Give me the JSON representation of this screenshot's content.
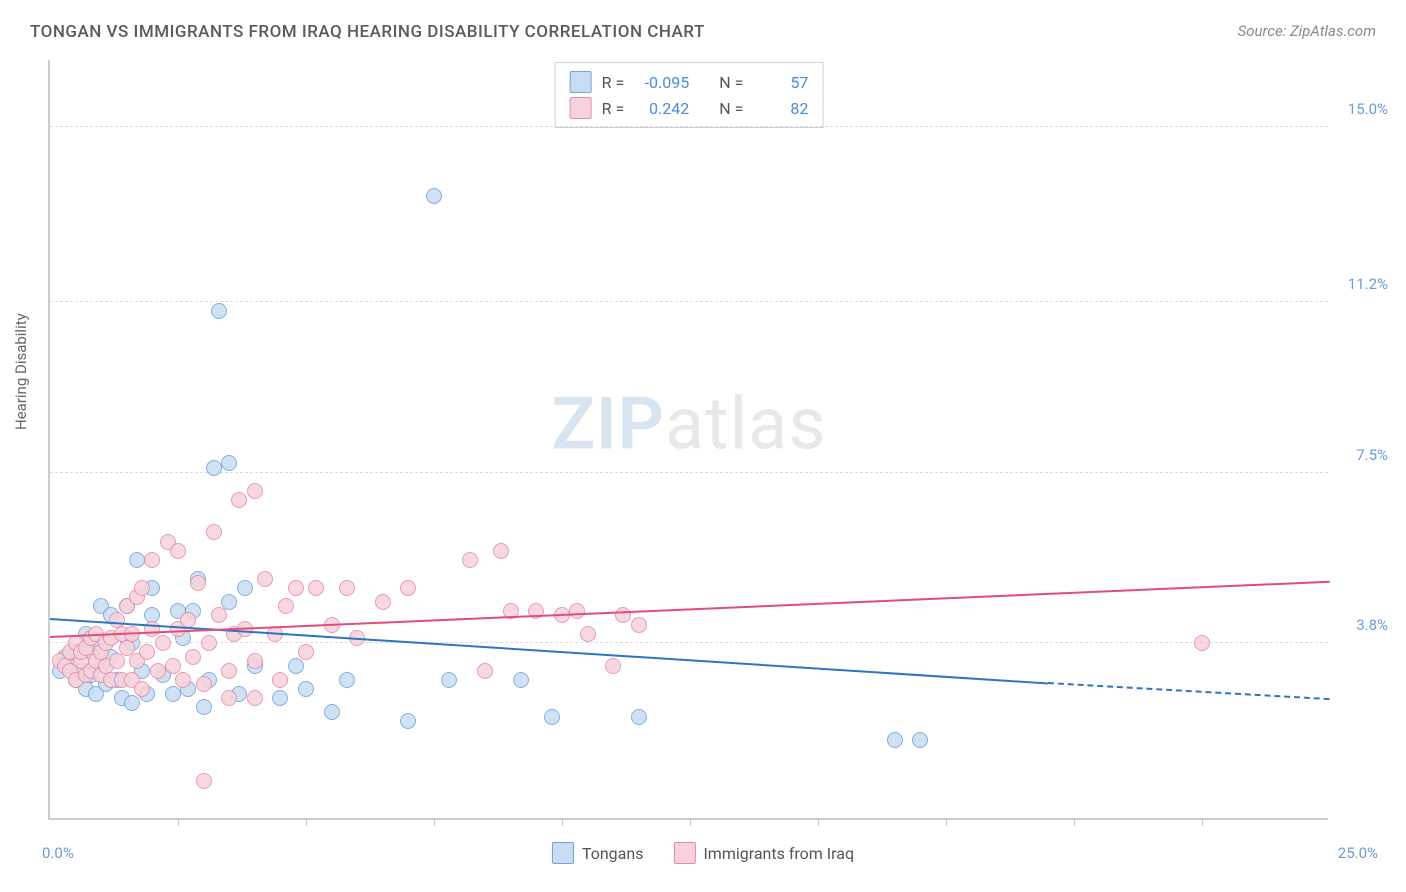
{
  "title": "TONGAN VS IMMIGRANTS FROM IRAQ HEARING DISABILITY CORRELATION CHART",
  "source": "Source: ZipAtlas.com",
  "watermark_a": "ZIP",
  "watermark_b": "atlas",
  "y_axis_title": "Hearing Disability",
  "x_origin": "0.0%",
  "x_max": "25.0%",
  "chart": {
    "type": "scatter-with-trendlines",
    "background_color": "#ffffff",
    "grid_color": "#dddddd",
    "axis_color": "#cccccc",
    "tick_label_color": "#6b9bd1",
    "axis_title_color": "#666666",
    "xlim": [
      0.0,
      25.0
    ],
    "ylim": [
      0.0,
      16.5
    ],
    "y_ticks": [
      3.8,
      7.5,
      11.2,
      15.0
    ],
    "y_tick_labels": [
      "3.8%",
      "7.5%",
      "11.2%",
      "15.0%"
    ],
    "x_tick_positions_pct": [
      10,
      20,
      30,
      40,
      50,
      60,
      70,
      80,
      90
    ],
    "marker_radius": 8,
    "marker_stroke_width": 1.5,
    "trend_line_width": 2,
    "legend_border": "#cfcfcf",
    "label_fontsize": 15,
    "title_fontsize": 17
  },
  "series": [
    {
      "name": "Tongans",
      "fill": "#c8dcf2",
      "stroke": "#6fa3d9",
      "trend_color": "#2f74c4",
      "R_label": "R =",
      "R": "-0.095",
      "N_label": "N =",
      "N": "57",
      "trend": {
        "x1": 0.0,
        "y1": 4.3,
        "x2": 19.5,
        "y2": 2.9,
        "dash_x2": 25.0,
        "dash_y2": 2.55
      },
      "points": [
        [
          0.2,
          3.2
        ],
        [
          0.3,
          3.5
        ],
        [
          0.4,
          3.3
        ],
        [
          0.5,
          3.0
        ],
        [
          0.5,
          3.6
        ],
        [
          0.6,
          3.2
        ],
        [
          0.7,
          2.8
        ],
        [
          0.7,
          4.0
        ],
        [
          0.8,
          3.1
        ],
        [
          0.8,
          3.6
        ],
        [
          0.9,
          2.7
        ],
        [
          0.9,
          3.8
        ],
        [
          1.0,
          3.3
        ],
        [
          1.0,
          4.6
        ],
        [
          1.1,
          2.9
        ],
        [
          1.2,
          3.5
        ],
        [
          1.2,
          4.4
        ],
        [
          1.3,
          3.0
        ],
        [
          1.4,
          2.6
        ],
        [
          1.5,
          3.9
        ],
        [
          1.5,
          4.6
        ],
        [
          1.6,
          2.5
        ],
        [
          1.6,
          3.8
        ],
        [
          1.7,
          5.6
        ],
        [
          1.8,
          3.2
        ],
        [
          1.9,
          2.7
        ],
        [
          2.0,
          4.4
        ],
        [
          2.0,
          5.0
        ],
        [
          2.2,
          3.1
        ],
        [
          2.4,
          2.7
        ],
        [
          2.5,
          4.5
        ],
        [
          2.6,
          3.9
        ],
        [
          2.7,
          2.8
        ],
        [
          2.8,
          4.5
        ],
        [
          2.9,
          5.2
        ],
        [
          3.0,
          2.4
        ],
        [
          3.1,
          3.0
        ],
        [
          3.2,
          7.6
        ],
        [
          3.3,
          11.0
        ],
        [
          3.5,
          4.7
        ],
        [
          3.5,
          7.7
        ],
        [
          3.7,
          2.7
        ],
        [
          3.8,
          5.0
        ],
        [
          4.0,
          3.3
        ],
        [
          4.5,
          2.6
        ],
        [
          4.8,
          3.3
        ],
        [
          5.0,
          2.8
        ],
        [
          5.5,
          2.3
        ],
        [
          5.8,
          3.0
        ],
        [
          7.0,
          2.1
        ],
        [
          7.5,
          13.5
        ],
        [
          7.8,
          3.0
        ],
        [
          9.2,
          3.0
        ],
        [
          9.8,
          2.2
        ],
        [
          11.5,
          2.2
        ],
        [
          16.5,
          1.7
        ],
        [
          17.0,
          1.7
        ]
      ]
    },
    {
      "name": "Immigrants from Iraq",
      "fill": "#f6d2dc",
      "stroke": "#e68aa5",
      "trend_color": "#e04e7b",
      "R_label": "R =",
      "R": "0.242",
      "N_label": "N =",
      "N": "82",
      "trend": {
        "x1": 0.0,
        "y1": 3.9,
        "x2": 25.0,
        "y2": 5.1
      },
      "points": [
        [
          0.2,
          3.4
        ],
        [
          0.3,
          3.3
        ],
        [
          0.4,
          3.6
        ],
        [
          0.4,
          3.2
        ],
        [
          0.5,
          3.0
        ],
        [
          0.5,
          3.8
        ],
        [
          0.6,
          3.4
        ],
        [
          0.6,
          3.6
        ],
        [
          0.7,
          3.1
        ],
        [
          0.7,
          3.7
        ],
        [
          0.8,
          3.2
        ],
        [
          0.8,
          3.9
        ],
        [
          0.9,
          3.4
        ],
        [
          0.9,
          4.0
        ],
        [
          1.0,
          3.1
        ],
        [
          1.0,
          3.6
        ],
        [
          1.1,
          3.8
        ],
        [
          1.1,
          3.3
        ],
        [
          1.2,
          3.0
        ],
        [
          1.2,
          3.9
        ],
        [
          1.3,
          3.4
        ],
        [
          1.3,
          4.3
        ],
        [
          1.4,
          3.0
        ],
        [
          1.4,
          4.0
        ],
        [
          1.5,
          3.7
        ],
        [
          1.5,
          4.6
        ],
        [
          1.6,
          3.0
        ],
        [
          1.6,
          4.0
        ],
        [
          1.7,
          3.4
        ],
        [
          1.7,
          4.8
        ],
        [
          1.8,
          2.8
        ],
        [
          1.8,
          5.0
        ],
        [
          1.9,
          3.6
        ],
        [
          2.0,
          4.1
        ],
        [
          2.0,
          5.6
        ],
        [
          2.1,
          3.2
        ],
        [
          2.2,
          3.8
        ],
        [
          2.3,
          6.0
        ],
        [
          2.4,
          3.3
        ],
        [
          2.5,
          4.1
        ],
        [
          2.5,
          5.8
        ],
        [
          2.6,
          3.0
        ],
        [
          2.7,
          4.3
        ],
        [
          2.8,
          3.5
        ],
        [
          2.9,
          5.1
        ],
        [
          3.0,
          2.9
        ],
        [
          3.0,
          0.8
        ],
        [
          3.1,
          3.8
        ],
        [
          3.2,
          6.2
        ],
        [
          3.3,
          4.4
        ],
        [
          3.5,
          2.6
        ],
        [
          3.5,
          3.2
        ],
        [
          3.6,
          4.0
        ],
        [
          3.7,
          6.9
        ],
        [
          3.8,
          4.1
        ],
        [
          4.0,
          2.6
        ],
        [
          4.0,
          3.4
        ],
        [
          4.0,
          7.1
        ],
        [
          4.2,
          5.2
        ],
        [
          4.4,
          4.0
        ],
        [
          4.5,
          3.0
        ],
        [
          4.6,
          4.6
        ],
        [
          4.8,
          5.0
        ],
        [
          5.0,
          3.6
        ],
        [
          5.2,
          5.0
        ],
        [
          5.5,
          4.2
        ],
        [
          5.8,
          5.0
        ],
        [
          6.0,
          3.9
        ],
        [
          6.5,
          4.7
        ],
        [
          7.0,
          5.0
        ],
        [
          8.2,
          5.6
        ],
        [
          8.5,
          3.2
        ],
        [
          8.8,
          5.8
        ],
        [
          9.0,
          4.5
        ],
        [
          9.5,
          4.5
        ],
        [
          10.0,
          4.4
        ],
        [
          10.3,
          4.5
        ],
        [
          10.5,
          4.0
        ],
        [
          11.0,
          3.3
        ],
        [
          11.2,
          4.4
        ],
        [
          11.5,
          4.2
        ],
        [
          22.5,
          3.8
        ]
      ]
    }
  ]
}
